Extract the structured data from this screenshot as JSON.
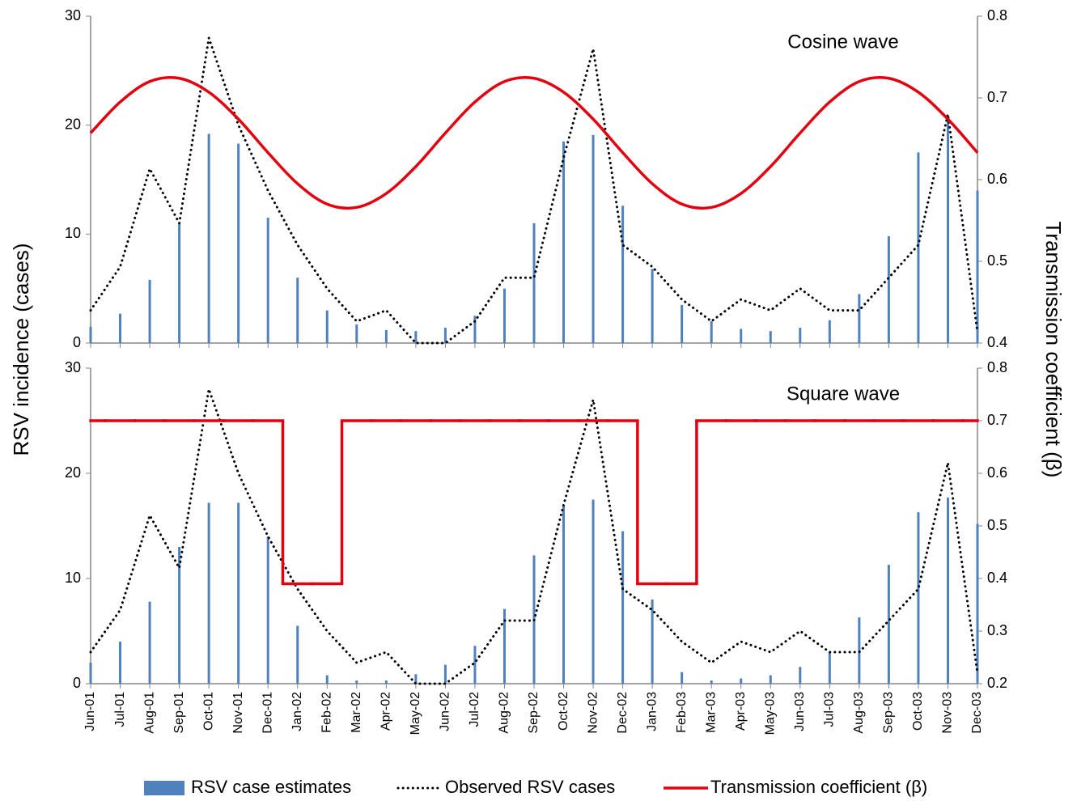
{
  "chart_data": [
    {
      "type": "line",
      "title": "Cosine wave",
      "y_label": "RSV incidence (cases)",
      "y2_label": "Transmission coefficient (β)",
      "ylim": [
        0,
        30
      ],
      "yticks": [
        0,
        10,
        20,
        30
      ],
      "y2lim": [
        0.4,
        0.8
      ],
      "y2ticks": [
        0.4,
        0.5,
        0.6,
        0.7,
        0.8
      ],
      "series": [
        {
          "type": "bar",
          "color": "#4f81bd",
          "values": [
            1.5,
            2.7,
            5.8,
            11,
            19.2,
            18.3,
            11.5,
            6,
            3,
            1.7,
            1.2,
            1.1,
            1.4,
            2.5,
            5,
            11,
            18.5,
            19.1,
            12.6,
            6.8,
            3.5,
            2,
            1.3,
            1.1,
            1.4,
            2.1,
            4.5,
            9.8,
            17.5,
            20.5,
            14
          ]
        },
        {
          "type": "line",
          "line_style": "dotted",
          "color": "#000000",
          "values": [
            3,
            7,
            16,
            11,
            28,
            20,
            14,
            9,
            5,
            2,
            3,
            0,
            0,
            2,
            6,
            6,
            17,
            27,
            9,
            7,
            4,
            2,
            4,
            3,
            5,
            3,
            3,
            6,
            9,
            21,
            1
          ]
        },
        {
          "type": "line",
          "line_style": "smooth",
          "axis": "y2",
          "color": "#e3000f",
          "values": [
            0.657,
            0.695,
            0.72,
            0.724,
            0.707,
            0.674,
            0.633,
            0.595,
            0.57,
            0.566,
            0.583,
            0.616,
            0.657,
            0.695,
            0.72,
            0.724,
            0.707,
            0.674,
            0.633,
            0.595,
            0.57,
            0.566,
            0.583,
            0.616,
            0.657,
            0.695,
            0.72,
            0.724,
            0.707,
            0.674,
            0.633
          ]
        }
      ]
    },
    {
      "type": "line",
      "title": "Square wave",
      "categories": [
        "Jun-01",
        "Jul-01",
        "Aug-01",
        "Sep-01",
        "Oct-01",
        "Nov-01",
        "Dec-01",
        "Jan-02",
        "Feb-02",
        "Mar-02",
        "Apr-02",
        "May-02",
        "Jun-02",
        "Jul-02",
        "Aug-02",
        "Sep-02",
        "Oct-02",
        "Nov-02",
        "Dec-02",
        "Jan-03",
        "Feb-03",
        "Mar-03",
        "Apr-03",
        "May-03",
        "Jun-03",
        "Jul-03",
        "Aug-03",
        "Sep-03",
        "Oct-03",
        "Nov-03",
        "Dec-03"
      ],
      "ylim": [
        0,
        30
      ],
      "yticks": [
        0,
        10,
        20,
        30
      ],
      "y2lim": [
        0.2,
        0.8
      ],
      "y2ticks": [
        0.2,
        0.3,
        0.4,
        0.5,
        0.6,
        0.7,
        0.8
      ],
      "series": [
        {
          "name": "RSV case estimates",
          "type": "bar",
          "color": "#4f81bd",
          "values": [
            2,
            4,
            7.8,
            13,
            17.2,
            17.2,
            14,
            5.5,
            0.8,
            0.3,
            0.3,
            0.9,
            1.8,
            3.6,
            7.1,
            12.2,
            17,
            17.5,
            14.5,
            8,
            1.1,
            0.3,
            0.5,
            0.8,
            1.6,
            3,
            6.3,
            11.3,
            16.3,
            17.7,
            15.2
          ]
        },
        {
          "name": "Observed RSV cases",
          "type": "line",
          "line_style": "dotted",
          "color": "#000000",
          "values": [
            3,
            7,
            16,
            11,
            28,
            20,
            14,
            9,
            5,
            2,
            3,
            0,
            0,
            2,
            6,
            6,
            17,
            27,
            9,
            7,
            4,
            2,
            4,
            3,
            5,
            3,
            3,
            6,
            9,
            21,
            1
          ]
        },
        {
          "name": "Transmission coefficient (β)",
          "type": "line",
          "line_style": "step",
          "axis": "y2",
          "color": "#e3000f",
          "values": [
            0.7,
            0.7,
            0.7,
            0.7,
            0.7,
            0.7,
            0.7,
            0.39,
            0.39,
            0.7,
            0.7,
            0.7,
            0.7,
            0.7,
            0.7,
            0.7,
            0.7,
            0.7,
            0.7,
            0.39,
            0.39,
            0.7,
            0.7,
            0.7,
            0.7,
            0.7,
            0.7,
            0.7,
            0.7,
            0.7,
            0.7
          ]
        }
      ]
    }
  ]
}
